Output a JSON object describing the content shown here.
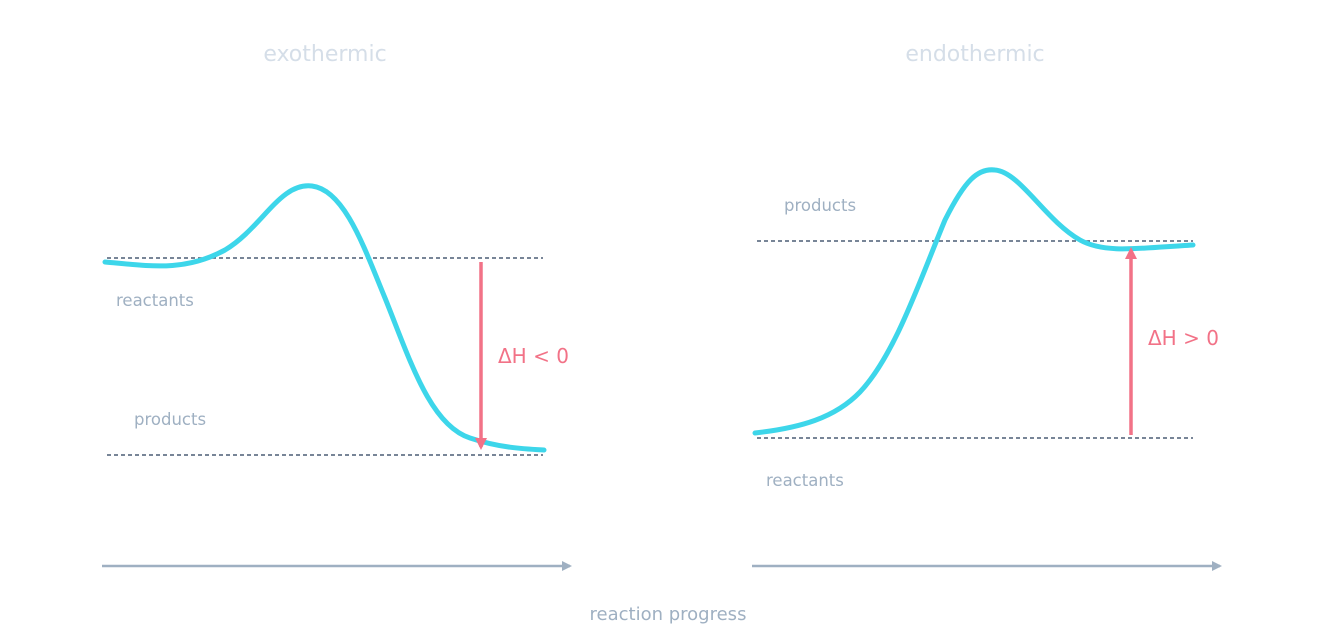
{
  "diagrams": [
    {
      "title": "exothermic",
      "reactants_label": "reactants",
      "products_label": "products",
      "delta_h_label": "ΔH < 0"
    },
    {
      "title": "endothermic",
      "reactants_label": "reactants",
      "products_label": "products",
      "delta_h_label": "ΔH > 0"
    }
  ],
  "x_axis_label": "reaction progress",
  "colors": {
    "curve": "#3dd6ea",
    "delta_h": "#f27287",
    "level_line": "#4b5d75",
    "axis": "#9fb0c2",
    "label": "#9fb0c2",
    "title": "#d5dee8"
  }
}
